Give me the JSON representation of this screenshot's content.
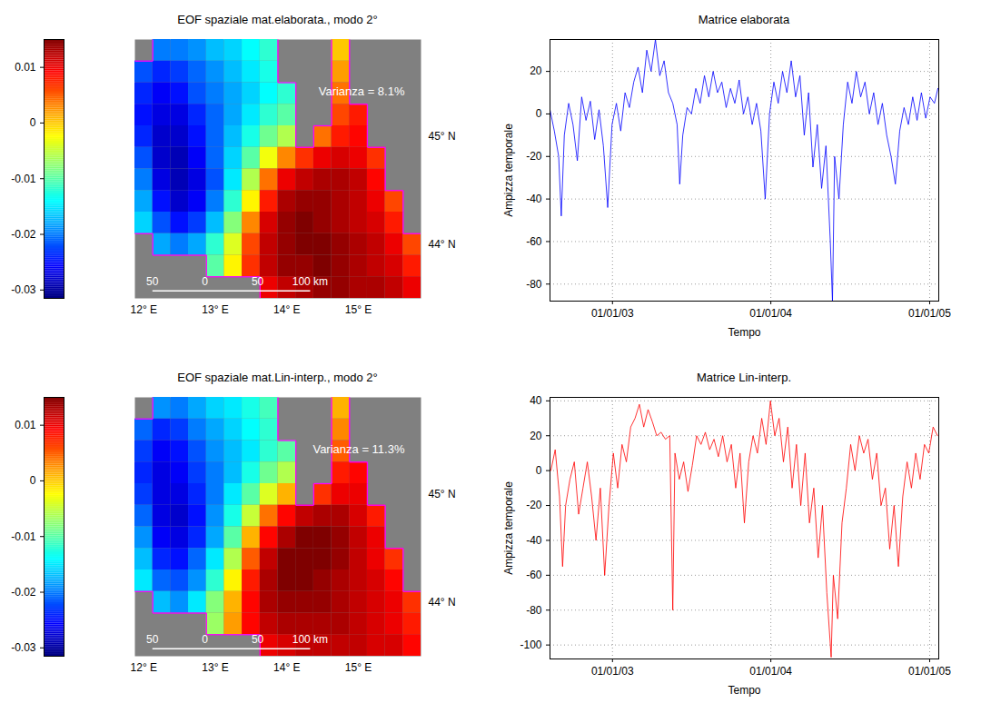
{
  "chart_data": [
    {
      "type": "heatmap",
      "title": "EOF spaziale mat.elaborata., modo 2°",
      "annotations": [
        "Varianza = 8.1%"
      ],
      "x": [
        12.0,
        12.25,
        12.5,
        12.75,
        13.0,
        13.25,
        13.5,
        13.75,
        14.0,
        14.25,
        14.5,
        14.75,
        15.0,
        15.25,
        15.5,
        15.75
      ],
      "y": [
        45.8,
        45.6,
        45.4,
        45.2,
        45.0,
        44.8,
        44.6,
        44.4,
        44.2,
        44.0,
        43.8,
        43.6
      ],
      "z": [
        [
          null,
          -0.02,
          -0.02,
          -0.019,
          -0.017,
          -0.016,
          -0.014,
          -0.012,
          null,
          null,
          null,
          0,
          null,
          null,
          null,
          null
        ],
        [
          -0.022,
          -0.024,
          -0.023,
          -0.021,
          -0.019,
          -0.017,
          -0.015,
          -0.013,
          null,
          null,
          null,
          0.002,
          null,
          null,
          null,
          null
        ],
        [
          -0.024,
          -0.026,
          -0.025,
          -0.022,
          -0.02,
          -0.018,
          -0.016,
          -0.014,
          -0.012,
          null,
          null,
          0.004,
          null,
          null,
          null,
          null
        ],
        [
          -0.025,
          -0.027,
          -0.027,
          -0.024,
          -0.021,
          -0.018,
          -0.015,
          -0.012,
          -0.01,
          null,
          null,
          0.006,
          0.008,
          null,
          null,
          null
        ],
        [
          -0.024,
          -0.028,
          -0.028,
          -0.025,
          -0.021,
          -0.017,
          -0.013,
          -0.009,
          -0.006,
          null,
          0.004,
          0.008,
          0.009,
          null,
          null,
          null
        ],
        [
          -0.022,
          -0.028,
          -0.029,
          -0.026,
          -0.021,
          -0.016,
          -0.01,
          -0.003,
          0.003,
          0.007,
          0.01,
          0.011,
          0.01,
          0.007,
          null,
          null
        ],
        [
          -0.02,
          -0.027,
          -0.029,
          -0.027,
          -0.022,
          -0.015,
          -0.006,
          0.004,
          0.01,
          0.012,
          0.013,
          0.013,
          0.012,
          0.009,
          null,
          null
        ],
        [
          -0.018,
          -0.025,
          -0.028,
          -0.026,
          -0.02,
          -0.012,
          -0.002,
          0.008,
          0.013,
          0.014,
          0.014,
          0.013,
          0.012,
          0.01,
          0.006,
          null
        ],
        [
          -0.016,
          -0.022,
          -0.025,
          -0.023,
          -0.017,
          -0.008,
          0.003,
          0.011,
          0.014,
          0.015,
          0.014,
          0.013,
          0.012,
          0.011,
          0.008,
          null
        ],
        [
          null,
          -0.018,
          -0.02,
          -0.018,
          -0.012,
          -0.004,
          0.006,
          0.012,
          0.014,
          0.015,
          0.015,
          0.014,
          0.013,
          0.012,
          0.01,
          0.006
        ],
        [
          null,
          null,
          null,
          null,
          -0.01,
          -0.002,
          0.007,
          0.012,
          0.014,
          0.014,
          0.015,
          0.014,
          0.013,
          0.012,
          0.011,
          0.008
        ],
        [
          null,
          null,
          null,
          null,
          null,
          null,
          null,
          0.01,
          0.012,
          0.013,
          0.014,
          0.014,
          0.013,
          0.013,
          0.012,
          0.01
        ]
      ],
      "xlim": [
        11.875,
        15.875
      ],
      "ylim": [
        43.5,
        45.9
      ],
      "xticks": [
        {
          "value": 12,
          "label": "12° E"
        },
        {
          "value": 13,
          "label": "13° E"
        },
        {
          "value": 14,
          "label": "14° E"
        },
        {
          "value": 15,
          "label": "15° E"
        }
      ],
      "yticks": [
        {
          "value": 44,
          "label": "44° N"
        },
        {
          "value": 45,
          "label": "45° N"
        }
      ],
      "colorbar": {
        "range": [
          -0.0315,
          0.015
        ],
        "ticks": [
          0.01,
          0,
          -0.01,
          -0.02,
          -0.03
        ]
      },
      "scale_bar": {
        "ticks": [
          {
            "value": -50,
            "label": "50"
          },
          {
            "value": 0,
            "label": "0"
          },
          {
            "value": 50,
            "label": "50"
          },
          {
            "value": 100,
            "label": "100 km"
          }
        ]
      }
    },
    {
      "type": "line",
      "title": "Matrice elaborata",
      "x_label": "Tempo",
      "y_label": "Ampizza temporale",
      "color": "#0000ff",
      "grid": true,
      "xlim": [
        "2002-08-10",
        "2005-01-22"
      ],
      "xticks": [
        {
          "value": "2003-01-01",
          "label": "01/01/03"
        },
        {
          "value": "2004-01-01",
          "label": "01/01/04"
        },
        {
          "value": "2005-01-01",
          "label": "01/01/05"
        }
      ],
      "ylim": [
        -88,
        35
      ],
      "yticks": [
        20,
        0,
        -20,
        -40,
        -60,
        -80
      ],
      "x": [
        "2002-08-10",
        "2002-08-20",
        "2002-08-30",
        "2002-09-05",
        "2002-09-12",
        "2002-09-22",
        "2002-10-02",
        "2002-10-12",
        "2002-10-22",
        "2002-11-01",
        "2002-11-11",
        "2002-11-21",
        "2002-12-01",
        "2002-12-11",
        "2002-12-21",
        "2002-12-31",
        "2003-01-10",
        "2003-01-20",
        "2003-01-30",
        "2003-02-09",
        "2003-02-19",
        "2003-03-01",
        "2003-03-11",
        "2003-03-21",
        "2003-03-31",
        "2003-04-10",
        "2003-04-20",
        "2003-04-30",
        "2003-05-10",
        "2003-05-20",
        "2003-05-30",
        "2003-06-05",
        "2003-06-12",
        "2003-06-22",
        "2003-07-02",
        "2003-07-12",
        "2003-07-22",
        "2003-08-01",
        "2003-08-11",
        "2003-08-21",
        "2003-08-31",
        "2003-09-10",
        "2003-09-20",
        "2003-09-30",
        "2003-10-10",
        "2003-10-20",
        "2003-10-30",
        "2003-11-09",
        "2003-11-19",
        "2003-11-29",
        "2003-12-09",
        "2003-12-19",
        "2003-12-29",
        "2004-01-08",
        "2004-01-18",
        "2004-01-28",
        "2004-02-07",
        "2004-02-17",
        "2004-02-27",
        "2004-03-08",
        "2004-03-18",
        "2004-03-28",
        "2004-04-07",
        "2004-04-17",
        "2004-04-27",
        "2004-05-07",
        "2004-05-17",
        "2004-05-22",
        "2004-05-27",
        "2004-06-06",
        "2004-06-16",
        "2004-06-26",
        "2004-07-06",
        "2004-07-16",
        "2004-07-26",
        "2004-08-05",
        "2004-08-15",
        "2004-08-25",
        "2004-09-04",
        "2004-09-14",
        "2004-09-24",
        "2004-10-04",
        "2004-10-14",
        "2004-10-24",
        "2004-11-03",
        "2004-11-13",
        "2004-11-23",
        "2004-12-03",
        "2004-12-13",
        "2004-12-23",
        "2005-01-02",
        "2005-01-12",
        "2005-01-20"
      ],
      "values": [
        2,
        -8,
        -20,
        -48,
        -10,
        5,
        -5,
        -22,
        8,
        -3,
        6,
        -12,
        2,
        -15,
        -44,
        -5,
        5,
        -8,
        10,
        3,
        15,
        22,
        10,
        30,
        20,
        35,
        18,
        25,
        10,
        5,
        -5,
        -33,
        -10,
        3,
        0,
        12,
        5,
        18,
        8,
        20,
        10,
        15,
        3,
        12,
        5,
        16,
        0,
        8,
        -5,
        5,
        -8,
        -40,
        0,
        15,
        5,
        20,
        10,
        25,
        8,
        18,
        -10,
        10,
        -25,
        -5,
        -35,
        -15,
        -60,
        -88,
        -20,
        -40,
        -5,
        15,
        5,
        20,
        8,
        15,
        0,
        10,
        -5,
        5,
        -10,
        -20,
        -33,
        -8,
        3,
        -5,
        8,
        -3,
        10,
        -2,
        8,
        5,
        12
      ]
    },
    {
      "type": "heatmap",
      "title": "EOF spaziale mat.Lin-interp., modo 2°",
      "annotations": [
        "Varianza = 11.3%"
      ],
      "x": [
        12.0,
        12.25,
        12.5,
        12.75,
        13.0,
        13.25,
        13.5,
        13.75,
        14.0,
        14.25,
        14.5,
        14.75,
        15.0,
        15.25,
        15.5,
        15.75
      ],
      "y": [
        45.8,
        45.6,
        45.4,
        45.2,
        45.0,
        44.8,
        44.6,
        44.4,
        44.2,
        44.0,
        43.8,
        43.6
      ],
      "z": [
        [
          null,
          -0.019,
          -0.02,
          -0.018,
          -0.016,
          -0.015,
          -0.013,
          -0.011,
          null,
          null,
          null,
          0.001,
          null,
          null,
          null,
          null
        ],
        [
          -0.021,
          -0.024,
          -0.023,
          -0.02,
          -0.018,
          -0.016,
          -0.014,
          -0.012,
          null,
          null,
          null,
          0.003,
          null,
          null,
          null,
          null
        ],
        [
          -0.023,
          -0.026,
          -0.025,
          -0.022,
          -0.019,
          -0.017,
          -0.015,
          -0.012,
          -0.01,
          null,
          null,
          0.005,
          null,
          null,
          null,
          null
        ],
        [
          -0.024,
          -0.027,
          -0.026,
          -0.023,
          -0.02,
          -0.017,
          -0.013,
          -0.009,
          -0.006,
          null,
          null,
          0.008,
          0.009,
          null,
          null,
          null
        ],
        [
          -0.023,
          -0.027,
          -0.027,
          -0.024,
          -0.02,
          -0.015,
          -0.01,
          -0.004,
          0.001,
          null,
          0.007,
          0.01,
          0.01,
          null,
          null,
          null
        ],
        [
          -0.021,
          -0.027,
          -0.028,
          -0.025,
          -0.019,
          -0.013,
          -0.005,
          0.004,
          0.009,
          0.012,
          0.013,
          0.013,
          0.011,
          0.008,
          null,
          null
        ],
        [
          -0.019,
          -0.026,
          -0.027,
          -0.024,
          -0.018,
          -0.01,
          0.001,
          0.009,
          0.013,
          0.015,
          0.015,
          0.014,
          0.012,
          0.01,
          null,
          null
        ],
        [
          -0.017,
          -0.024,
          -0.025,
          -0.021,
          -0.015,
          -0.006,
          0.005,
          0.012,
          0.015,
          0.015,
          0.015,
          0.014,
          0.012,
          0.01,
          0.007,
          null
        ],
        [
          -0.015,
          -0.021,
          -0.022,
          -0.019,
          -0.012,
          -0.002,
          0.008,
          0.013,
          0.015,
          0.015,
          0.014,
          0.013,
          0.012,
          0.011,
          0.009,
          null
        ],
        [
          null,
          -0.017,
          -0.019,
          -0.015,
          -0.008,
          0.001,
          0.009,
          0.013,
          0.014,
          0.014,
          0.014,
          0.013,
          0.012,
          0.011,
          0.01,
          0.007
        ],
        [
          null,
          null,
          null,
          null,
          -0.007,
          0.002,
          0.009,
          0.012,
          0.013,
          0.013,
          0.013,
          0.013,
          0.012,
          0.011,
          0.01,
          0.008
        ],
        [
          null,
          null,
          null,
          null,
          null,
          null,
          null,
          0.01,
          0.011,
          0.012,
          0.012,
          0.012,
          0.012,
          0.011,
          0.011,
          0.009
        ]
      ],
      "xlim": [
        11.875,
        15.875
      ],
      "ylim": [
        43.5,
        45.9
      ],
      "xticks": [
        {
          "value": 12,
          "label": "12° E"
        },
        {
          "value": 13,
          "label": "13° E"
        },
        {
          "value": 14,
          "label": "14° E"
        },
        {
          "value": 15,
          "label": "15° E"
        }
      ],
      "yticks": [
        {
          "value": 44,
          "label": "44° N"
        },
        {
          "value": 45,
          "label": "45° N"
        }
      ],
      "colorbar": {
        "range": [
          -0.0315,
          0.015
        ],
        "ticks": [
          0.01,
          0,
          -0.01,
          -0.02,
          -0.03
        ]
      },
      "scale_bar": {
        "ticks": [
          {
            "value": -50,
            "label": "50"
          },
          {
            "value": 0,
            "label": "0"
          },
          {
            "value": 50,
            "label": "50"
          },
          {
            "value": 100,
            "label": "100 km"
          }
        ]
      }
    },
    {
      "type": "line",
      "title": "Matrice Lin-interp.",
      "x_label": "Tempo",
      "y_label": "Ampizza temporale",
      "color": "#ff0000",
      "grid": true,
      "xlim": [
        "2002-08-10",
        "2005-01-22"
      ],
      "xticks": [
        {
          "value": "2003-01-01",
          "label": "01/01/03"
        },
        {
          "value": "2004-01-01",
          "label": "01/01/04"
        },
        {
          "value": "2005-01-01",
          "label": "01/01/05"
        }
      ],
      "ylim": [
        -108,
        42
      ],
      "yticks": [
        40,
        20,
        0,
        -20,
        -40,
        -60,
        -80,
        -100
      ],
      "x": [
        "2002-08-12",
        "2002-08-22",
        "2002-09-01",
        "2002-09-08",
        "2002-09-15",
        "2002-09-25",
        "2002-10-05",
        "2002-10-15",
        "2002-10-25",
        "2002-11-04",
        "2002-11-14",
        "2002-11-24",
        "2002-12-04",
        "2002-12-14",
        "2002-12-24",
        "2003-01-03",
        "2003-01-13",
        "2003-01-23",
        "2003-02-02",
        "2003-02-12",
        "2003-02-22",
        "2003-03-04",
        "2003-03-14",
        "2003-03-24",
        "2003-04-03",
        "2003-04-13",
        "2003-04-23",
        "2003-05-03",
        "2003-05-13",
        "2003-05-20",
        "2003-05-25",
        "2003-06-04",
        "2003-06-14",
        "2003-06-24",
        "2003-07-04",
        "2003-07-14",
        "2003-07-24",
        "2003-08-03",
        "2003-08-13",
        "2003-08-23",
        "2003-09-02",
        "2003-09-12",
        "2003-09-22",
        "2003-10-02",
        "2003-10-12",
        "2003-10-22",
        "2003-11-01",
        "2003-11-11",
        "2003-11-21",
        "2003-12-01",
        "2003-12-11",
        "2003-12-21",
        "2003-12-31",
        "2004-01-10",
        "2004-01-20",
        "2004-01-30",
        "2004-02-09",
        "2004-02-19",
        "2004-02-29",
        "2004-03-10",
        "2004-03-20",
        "2004-03-30",
        "2004-04-09",
        "2004-04-19",
        "2004-04-29",
        "2004-05-09",
        "2004-05-19",
        "2004-05-24",
        "2004-06-03",
        "2004-06-13",
        "2004-06-23",
        "2004-07-03",
        "2004-07-13",
        "2004-07-23",
        "2004-08-02",
        "2004-08-12",
        "2004-08-22",
        "2004-09-01",
        "2004-09-11",
        "2004-09-21",
        "2004-10-01",
        "2004-10-11",
        "2004-10-21",
        "2004-10-31",
        "2004-11-10",
        "2004-11-20",
        "2004-11-30",
        "2004-12-10",
        "2004-12-20",
        "2004-12-30",
        "2005-01-09",
        "2005-01-19"
      ],
      "values": [
        0,
        12,
        -15,
        -55,
        -20,
        -5,
        5,
        -25,
        -10,
        5,
        -15,
        -40,
        -10,
        -60,
        -20,
        10,
        -10,
        15,
        5,
        25,
        30,
        38,
        25,
        35,
        28,
        20,
        22,
        18,
        20,
        -80,
        10,
        -5,
        5,
        -12,
        3,
        20,
        15,
        22,
        12,
        18,
        8,
        20,
        5,
        15,
        -10,
        10,
        -30,
        5,
        20,
        10,
        30,
        15,
        40,
        20,
        30,
        5,
        25,
        -10,
        15,
        -20,
        10,
        -30,
        -10,
        -50,
        -20,
        -70,
        -107,
        -60,
        -85,
        -30,
        -10,
        15,
        0,
        20,
        10,
        18,
        -5,
        10,
        -20,
        -10,
        -45,
        -20,
        -55,
        -15,
        5,
        -10,
        10,
        -5,
        15,
        10,
        25,
        20
      ]
    }
  ]
}
